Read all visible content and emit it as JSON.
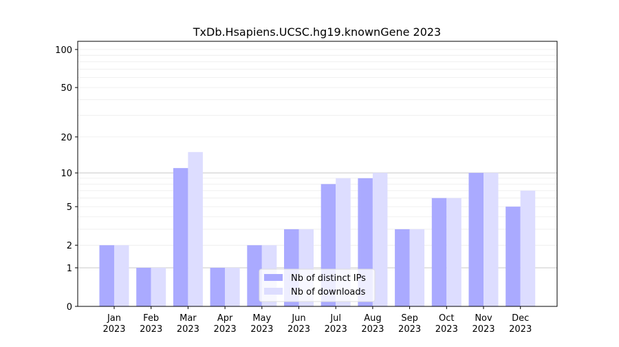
{
  "chart_data": {
    "type": "bar",
    "title": "TxDb.Hsapiens.UCSC.hg19.knownGene 2023",
    "xlabel": "",
    "ylabel": "",
    "yscale": "log(1+y)",
    "ylim": [
      0,
      116
    ],
    "yticks": [
      0,
      1,
      2,
      5,
      10,
      20,
      50,
      100
    ],
    "grid": true,
    "legend_position": "bottom-center",
    "categories": [
      "Jan\n2023",
      "Feb\n2023",
      "Mar\n2023",
      "Apr\n2023",
      "May\n2023",
      "Jun\n2023",
      "Jul\n2023",
      "Aug\n2023",
      "Sep\n2023",
      "Oct\n2023",
      "Nov\n2023",
      "Dec\n2023"
    ],
    "series": [
      {
        "name": "Nb of distinct IPs",
        "color": "#aaaaff",
        "values": [
          2,
          1,
          11,
          1,
          2,
          3,
          8,
          9,
          3,
          6,
          10,
          5
        ]
      },
      {
        "name": "Nb of downloads",
        "color": "#ddddff",
        "values": [
          2,
          1,
          15,
          1,
          2,
          3,
          9,
          10,
          3,
          6,
          10,
          7
        ]
      }
    ]
  }
}
